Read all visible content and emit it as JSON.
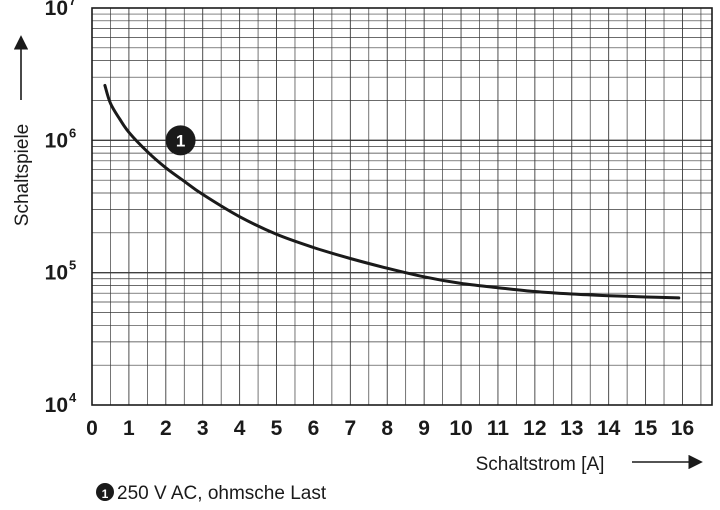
{
  "chart_data": {
    "type": "line",
    "title": "",
    "xlabel": "Schaltstrom [A]",
    "ylabel": "Schaltspiele",
    "x_ticks": [
      "0",
      "1",
      "2",
      "3",
      "4",
      "5",
      "6",
      "7",
      "8",
      "9",
      "10",
      "11",
      "12",
      "13",
      "14",
      "15",
      "16"
    ],
    "xlim": [
      0,
      16.8
    ],
    "y_scale": "log",
    "ylim": [
      10000,
      10000000
    ],
    "y_ticks": [
      {
        "base": "10",
        "exp": "4",
        "value": 10000
      },
      {
        "base": "10",
        "exp": "5",
        "value": 100000
      },
      {
        "base": "10",
        "exp": "6",
        "value": 1000000
      },
      {
        "base": "10",
        "exp": "7",
        "value": 10000000
      }
    ],
    "grid": true,
    "series": [
      {
        "marker": "1",
        "label": "250 V AC, ohmsche Last",
        "color": "#1a1a1a",
        "points": [
          [
            0.35,
            2600000
          ],
          [
            0.5,
            1900000
          ],
          [
            0.75,
            1450000
          ],
          [
            1,
            1150000
          ],
          [
            1.5,
            820000
          ],
          [
            2,
            620000
          ],
          [
            2.5,
            490000
          ],
          [
            3,
            390000
          ],
          [
            4,
            265000
          ],
          [
            5,
            195000
          ],
          [
            6,
            155000
          ],
          [
            7,
            128000
          ],
          [
            8,
            108000
          ],
          [
            9,
            93000
          ],
          [
            10,
            83000
          ],
          [
            11,
            77000
          ],
          [
            12,
            72000
          ],
          [
            13,
            69000
          ],
          [
            14,
            67000
          ],
          [
            15,
            65500
          ],
          [
            15.9,
            64500
          ]
        ]
      }
    ],
    "annotations": [
      {
        "text": "1",
        "x": 2.4,
        "y": 1000000,
        "style": "filled-circle"
      }
    ],
    "legend": {
      "marker": "1",
      "text": "250 V AC, ohmsche Last",
      "placement": "bottom-left"
    }
  }
}
